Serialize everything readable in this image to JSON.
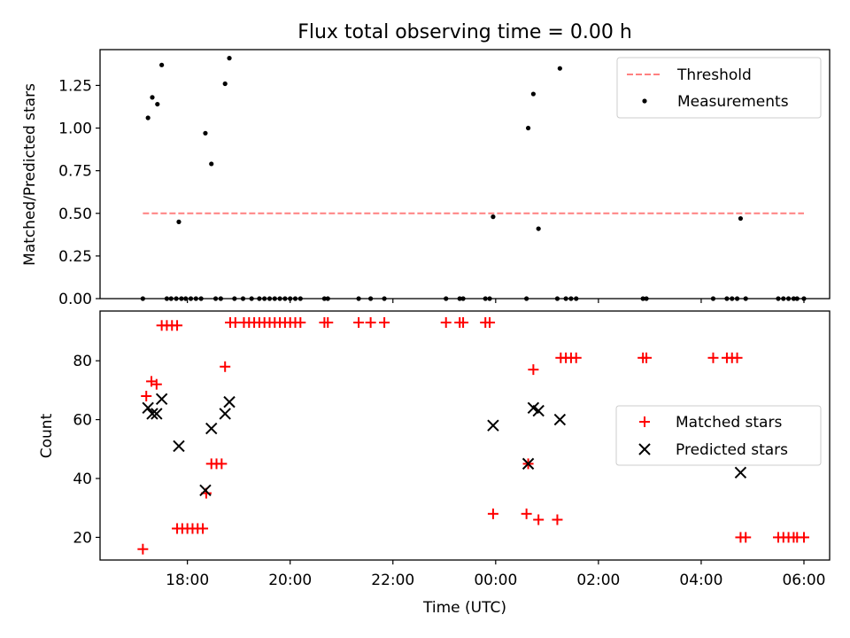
{
  "title": "Flux total observing time = 0.00 h",
  "xlabel": "Time (UTC)",
  "xticks": [
    "18:00",
    "20:00",
    "22:00",
    "00:00",
    "02:00",
    "04:00",
    "06:00"
  ],
  "chart_data": [
    {
      "type": "scatter",
      "ylabel": "Matched/Predicted stars",
      "ylim": [
        0,
        1.46
      ],
      "yticks": [
        "0.00",
        "0.25",
        "0.50",
        "0.75",
        "1.00",
        "1.25"
      ],
      "legend_position": "top-right",
      "threshold": {
        "name": "Threshold",
        "value": 0.5,
        "x_range": [
          "17:08",
          "06:00"
        ],
        "color": "#ff8080"
      },
      "measurements": {
        "name": "Measurements",
        "color": "#000000",
        "points": [
          [
            "17:08",
            0
          ],
          [
            "17:14",
            1.06
          ],
          [
            "17:19",
            1.18
          ],
          [
            "17:25",
            1.14
          ],
          [
            "17:30",
            1.37
          ],
          [
            "17:36",
            0
          ],
          [
            "17:41",
            0
          ],
          [
            "17:47",
            0
          ],
          [
            "17:50",
            0.45
          ],
          [
            "17:53",
            0
          ],
          [
            "17:58",
            0
          ],
          [
            "18:04",
            0
          ],
          [
            "18:10",
            0
          ],
          [
            "18:16",
            0
          ],
          [
            "18:21",
            0.97
          ],
          [
            "18:28",
            0.79
          ],
          [
            "18:33",
            0
          ],
          [
            "18:39",
            0
          ],
          [
            "18:44",
            1.26
          ],
          [
            "18:49",
            1.41
          ],
          [
            "18:55",
            0
          ],
          [
            "19:05",
            0
          ],
          [
            "19:15",
            0
          ],
          [
            "19:24",
            0
          ],
          [
            "19:30",
            0
          ],
          [
            "19:36",
            0
          ],
          [
            "19:42",
            0
          ],
          [
            "19:48",
            0
          ],
          [
            "19:54",
            0
          ],
          [
            "20:00",
            0
          ],
          [
            "20:06",
            0
          ],
          [
            "20:12",
            0
          ],
          [
            "20:40",
            0
          ],
          [
            "20:44",
            0
          ],
          [
            "21:20",
            0
          ],
          [
            "21:34",
            0
          ],
          [
            "21:50",
            0
          ],
          [
            "23:02",
            0
          ],
          [
            "23:18",
            0
          ],
          [
            "23:22",
            0
          ],
          [
            "23:48",
            0
          ],
          [
            "23:53",
            0
          ],
          [
            "23:57",
            0.48
          ],
          [
            "00:36",
            0
          ],
          [
            "00:38",
            1.0
          ],
          [
            "00:44",
            1.2
          ],
          [
            "00:50",
            0.41
          ],
          [
            "01:12",
            0
          ],
          [
            "01:15",
            1.35
          ],
          [
            "01:22",
            0
          ],
          [
            "01:28",
            0
          ],
          [
            "01:34",
            0
          ],
          [
            "02:52",
            0
          ],
          [
            "02:56",
            0
          ],
          [
            "04:14",
            0
          ],
          [
            "04:30",
            0
          ],
          [
            "04:36",
            0
          ],
          [
            "04:42",
            0
          ],
          [
            "04:46",
            0.47
          ],
          [
            "04:52",
            0
          ],
          [
            "05:30",
            0
          ],
          [
            "05:36",
            0
          ],
          [
            "05:42",
            0
          ],
          [
            "05:48",
            0
          ],
          [
            "05:52",
            0
          ],
          [
            "06:00",
            0
          ]
        ]
      }
    },
    {
      "type": "scatter",
      "ylabel": "Count",
      "ylim": [
        12.3,
        96.9
      ],
      "yticks": [
        "20",
        "40",
        "60",
        "80"
      ],
      "legend_position": "center-right",
      "series": [
        {
          "name": "Matched stars",
          "marker": "plus",
          "color": "#ff0000",
          "points": [
            [
              "17:08",
              16
            ],
            [
              "17:12",
              68
            ],
            [
              "17:18",
              73
            ],
            [
              "17:24",
              72
            ],
            [
              "17:30",
              92
            ],
            [
              "17:36",
              92
            ],
            [
              "17:42",
              92
            ],
            [
              "17:48",
              92
            ],
            [
              "17:48",
              23
            ],
            [
              "17:54",
              23
            ],
            [
              "18:00",
              23
            ],
            [
              "18:06",
              23
            ],
            [
              "18:12",
              23
            ],
            [
              "18:18",
              23
            ],
            [
              "18:22",
              35
            ],
            [
              "18:28",
              45
            ],
            [
              "18:34",
              45
            ],
            [
              "18:40",
              45
            ],
            [
              "18:44",
              78
            ],
            [
              "18:50",
              93
            ],
            [
              "18:56",
              93
            ],
            [
              "19:06",
              93
            ],
            [
              "19:12",
              93
            ],
            [
              "19:18",
              93
            ],
            [
              "19:24",
              93
            ],
            [
              "19:30",
              93
            ],
            [
              "19:36",
              93
            ],
            [
              "19:42",
              93
            ],
            [
              "19:48",
              93
            ],
            [
              "19:54",
              93
            ],
            [
              "20:00",
              93
            ],
            [
              "20:06",
              93
            ],
            [
              "20:12",
              93
            ],
            [
              "20:40",
              93
            ],
            [
              "20:44",
              93
            ],
            [
              "21:20",
              93
            ],
            [
              "21:34",
              93
            ],
            [
              "21:50",
              93
            ],
            [
              "23:02",
              93
            ],
            [
              "23:18",
              93
            ],
            [
              "23:22",
              93
            ],
            [
              "23:48",
              93
            ],
            [
              "23:53",
              93
            ],
            [
              "23:57",
              28
            ],
            [
              "00:36",
              28
            ],
            [
              "00:38",
              45
            ],
            [
              "00:44",
              77
            ],
            [
              "00:50",
              26
            ],
            [
              "01:12",
              26
            ],
            [
              "01:16",
              81
            ],
            [
              "01:22",
              81
            ],
            [
              "01:28",
              81
            ],
            [
              "01:34",
              81
            ],
            [
              "02:52",
              81
            ],
            [
              "02:56",
              81
            ],
            [
              "04:14",
              81
            ],
            [
              "04:30",
              81
            ],
            [
              "04:36",
              81
            ],
            [
              "04:42",
              81
            ],
            [
              "04:46",
              20
            ],
            [
              "04:52",
              20
            ],
            [
              "05:30",
              20
            ],
            [
              "05:36",
              20
            ],
            [
              "05:42",
              20
            ],
            [
              "05:48",
              20
            ],
            [
              "05:52",
              20
            ],
            [
              "06:00",
              20
            ]
          ]
        },
        {
          "name": "Predicted stars",
          "marker": "x",
          "color": "#000000",
          "points": [
            [
              "17:14",
              64
            ],
            [
              "17:19",
              62
            ],
            [
              "17:24",
              62
            ],
            [
              "17:30",
              67
            ],
            [
              "17:50",
              51
            ],
            [
              "18:21",
              36
            ],
            [
              "18:28",
              57
            ],
            [
              "18:44",
              62
            ],
            [
              "18:49",
              66
            ],
            [
              "23:57",
              58
            ],
            [
              "00:38",
              45
            ],
            [
              "00:44",
              64
            ],
            [
              "00:50",
              63
            ],
            [
              "01:15",
              60
            ],
            [
              "04:46",
              42
            ]
          ]
        }
      ]
    }
  ]
}
